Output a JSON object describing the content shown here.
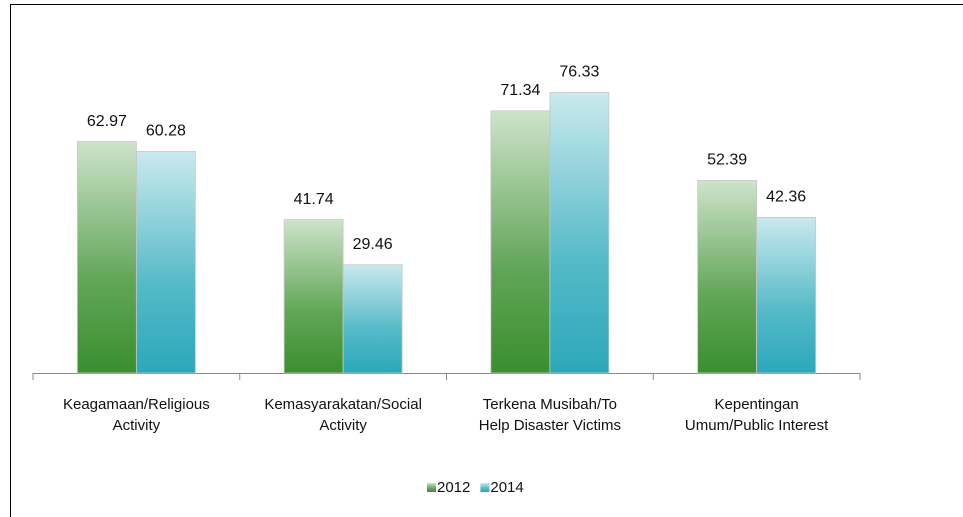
{
  "chart_data": {
    "type": "bar",
    "categories": [
      [
        "Keagamaan/Religious",
        "Activity"
      ],
      [
        "Kemasyarakatan/Social",
        "Activity"
      ],
      [
        "Terkena Musibah/To",
        "Help Disaster Victims"
      ],
      [
        "Kepentingan",
        "Umum/Public Interest"
      ]
    ],
    "series": [
      {
        "name": "2012",
        "color": "#3a8f2e",
        "values": [
          62.97,
          41.74,
          71.34,
          52.39
        ]
      },
      {
        "name": "2014",
        "color": "#2ba8ba",
        "values": [
          60.28,
          29.46,
          76.33,
          42.36
        ]
      }
    ],
    "ylim": [
      0,
      80
    ],
    "legend": "bottom"
  }
}
